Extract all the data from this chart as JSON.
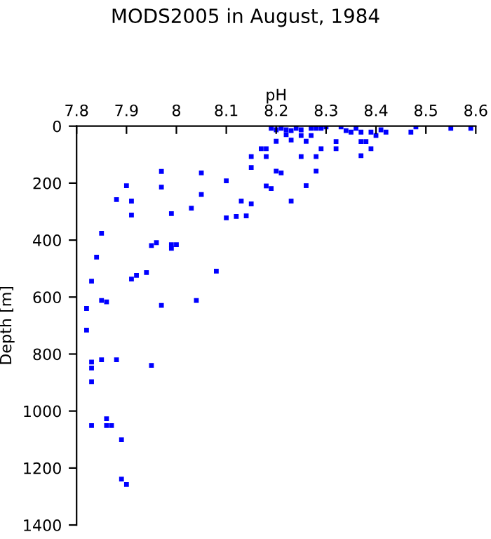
{
  "chart_data": {
    "type": "scatter",
    "title": "MODS2005 in August, 1984",
    "xlabel": "pH",
    "ylabel": "Depth [m]",
    "x": [
      8.19,
      8.2,
      8.21,
      8.22,
      8.23,
      8.24,
      8.25,
      8.27,
      8.28,
      8.29,
      8.3,
      8.22,
      8.23,
      8.25,
      8.26,
      8.27,
      8.2,
      8.17,
      8.18,
      8.15,
      8.18,
      8.25,
      8.28,
      8.15,
      8.2,
      8.21,
      8.28,
      8.18,
      8.19,
      8.26,
      8.23,
      8.33,
      8.34,
      8.35,
      8.36,
      8.37,
      8.39,
      8.4,
      8.41,
      8.42,
      8.32,
      8.32,
      8.37,
      8.38,
      8.39,
      8.37,
      8.47,
      8.48,
      8.55,
      8.59,
      8.29,
      7.97,
      7.97,
      7.9,
      7.88,
      7.91,
      7.91,
      7.99,
      8.03,
      8.05,
      8.05,
      8.1,
      8.1,
      8.12,
      8.13,
      8.14,
      8.15,
      7.85,
      7.95,
      7.96,
      7.99,
      8.0,
      7.99,
      7.84,
      7.83,
      7.85,
      7.86,
      7.91,
      7.92,
      7.94,
      7.97,
      8.04,
      8.08,
      7.82,
      7.82,
      7.83,
      7.83,
      7.85,
      7.88,
      7.95,
      7.83,
      7.86,
      7.86,
      7.87,
      7.83,
      7.89,
      7.89,
      7.9
    ],
    "values": [
      8,
      13,
      8,
      13,
      16,
      8,
      13,
      8,
      8,
      8,
      3,
      30,
      49,
      33,
      53,
      33,
      53,
      79,
      79,
      107,
      107,
      107,
      107,
      145,
      158,
      164,
      158,
      210,
      219,
      209,
      263,
      3,
      16,
      21,
      8,
      21,
      21,
      33,
      13,
      21,
      54,
      79,
      54,
      54,
      79,
      104,
      21,
      3,
      8,
      8,
      79,
      159,
      214,
      209,
      258,
      263,
      312,
      307,
      288,
      164,
      240,
      192,
      322,
      317,
      263,
      315,
      273,
      376,
      419,
      409,
      416,
      416,
      429,
      460,
      544,
      612,
      617,
      537,
      524,
      514,
      629,
      612,
      509,
      640,
      716,
      828,
      849,
      820,
      820,
      840,
      897,
      1027,
      1051,
      1051,
      1051,
      1101,
      1239,
      1258
    ],
    "color": "#0000ff",
    "marker": "square",
    "xlim": [
      7.8,
      8.6
    ],
    "xticks": [
      7.8,
      7.9,
      8,
      8.1,
      8.2,
      8.3,
      8.4,
      8.5,
      8.6
    ],
    "ylim": [
      1400,
      0
    ],
    "yticks": [
      0,
      200,
      400,
      600,
      800,
      1000,
      1200,
      1400
    ],
    "grid": false
  }
}
